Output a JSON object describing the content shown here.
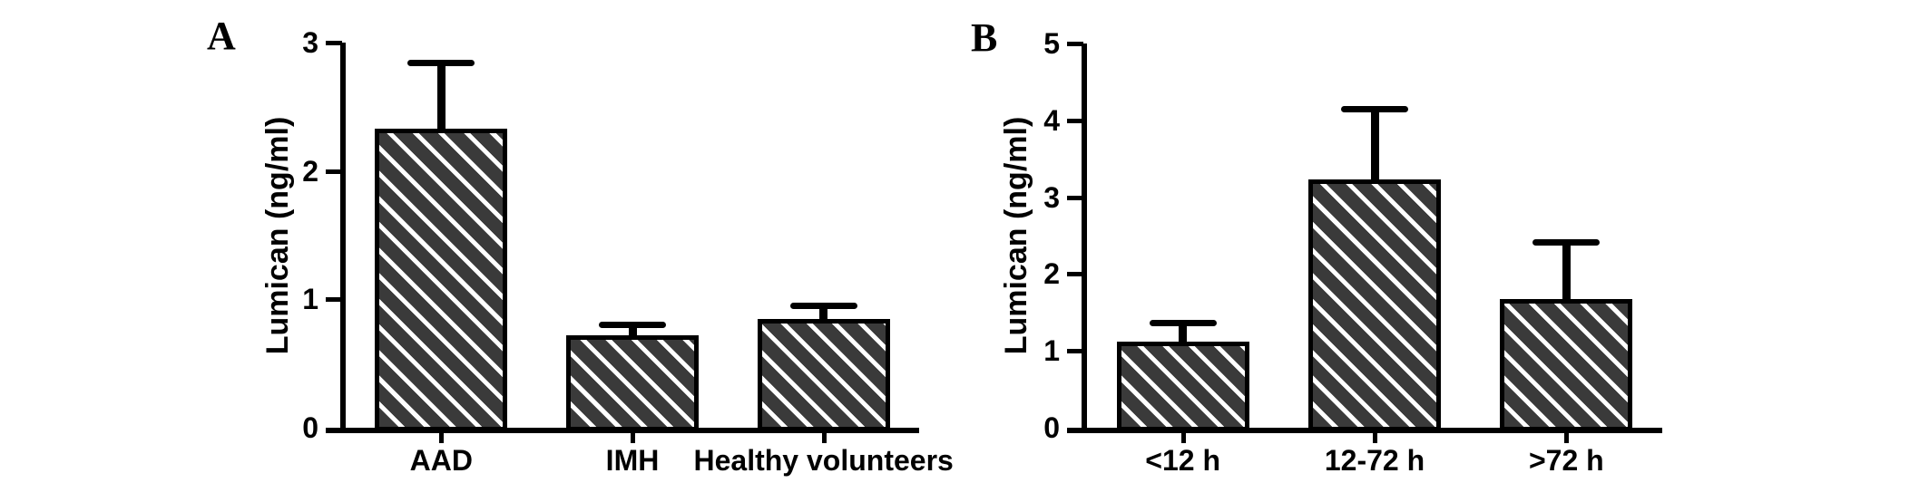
{
  "colors": {
    "bar_fill": "#3a3a3a",
    "hatch_stripe": "#ffffff",
    "axis": "#000000",
    "text": "#000000",
    "background": "#ffffff"
  },
  "chart_data": [
    {
      "type": "bar",
      "panel_label": "A",
      "title": "",
      "xlabel": "",
      "ylabel": "Lumican (ng/ml)",
      "categories": [
        "AAD",
        "IMH",
        "Healthy volunteers"
      ],
      "values": [
        2.33,
        0.72,
        0.85
      ],
      "error_up": [
        0.51,
        0.08,
        0.1
      ],
      "yticks": [
        0,
        1,
        2,
        3
      ],
      "ylim": [
        0,
        3
      ],
      "grid": false,
      "legend_position": "none",
      "bar_pattern": "diagonal-hatch"
    },
    {
      "type": "bar",
      "panel_label": "B",
      "title": "",
      "xlabel": "",
      "ylabel": "Lumican (ng/ml)",
      "categories": [
        "<12 h",
        "12-72 h",
        ">72 h"
      ],
      "values": [
        1.12,
        3.23,
        1.68
      ],
      "error_up": [
        0.24,
        0.91,
        0.73
      ],
      "yticks": [
        0,
        1,
        2,
        3,
        4,
        5
      ],
      "ylim": [
        0,
        5
      ],
      "grid": false,
      "legend_position": "none",
      "bar_pattern": "diagonal-hatch"
    }
  ]
}
